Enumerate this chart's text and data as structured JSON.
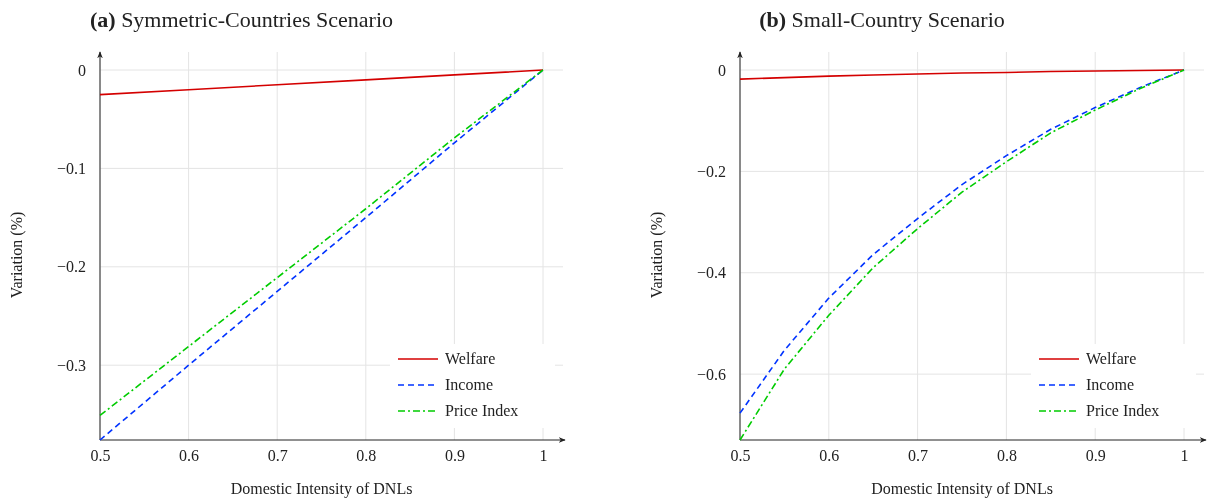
{
  "chart_data": [
    {
      "type": "line",
      "title": "(a) Symmetric-Countries Scenario",
      "xlabel": "Domestic Intensity of DNLs",
      "ylabel": "Variation (%)",
      "x": [
        0.5,
        0.6,
        0.7,
        0.8,
        0.9,
        1
      ],
      "series": [
        {
          "name": "Welfare",
          "color": "#d40000",
          "line_style": "solid",
          "values": [
            -0.025,
            -0.02,
            -0.015,
            -0.01,
            -0.005,
            0
          ]
        },
        {
          "name": "Income",
          "color": "#0033ff",
          "line_style": "dashed",
          "values": [
            -0.376,
            -0.3,
            -0.225,
            -0.15,
            -0.074,
            0
          ]
        },
        {
          "name": "Price Index",
          "color": "#00cc00",
          "line_style": "dashdot",
          "values": [
            -0.351,
            -0.281,
            -0.211,
            -0.141,
            -0.069,
            0
          ]
        }
      ],
      "xlim": [
        0.5,
        1.0
      ],
      "ylim": [
        -0.376,
        0
      ],
      "xticks": [
        0.5,
        0.6,
        0.7,
        0.8,
        0.9,
        1
      ],
      "yticks": [
        {
          "value": -0.3,
          "label": "−0.3"
        },
        {
          "value": -0.2,
          "label": "−0.2"
        },
        {
          "value": -0.1,
          "label": "−0.1"
        },
        0
      ],
      "grid": true,
      "legend": "bottom right",
      "marker": "none"
    },
    {
      "type": "line",
      "title": "(b) Small-Country Scenario",
      "xlabel": "Domestic Intensity of DNLs",
      "ylabel": "Variation (%)",
      "x": [
        0.5,
        0.55,
        0.6,
        0.65,
        0.7,
        0.75,
        0.8,
        0.85,
        0.9,
        0.95,
        1
      ],
      "series": [
        {
          "name": "Welfare",
          "color": "#d40000",
          "line_style": "solid",
          "values": [
            -0.018,
            -0.015,
            -0.012,
            -0.01,
            -0.008,
            -0.006,
            -0.005,
            -0.003,
            -0.002,
            -0.001,
            0
          ]
        },
        {
          "name": "Income",
          "color": "#0033ff",
          "line_style": "dashed",
          "values": [
            -0.677,
            -0.553,
            -0.45,
            -0.364,
            -0.293,
            -0.226,
            -0.169,
            -0.117,
            -0.074,
            -0.035,
            0
          ]
        },
        {
          "name": "Price Index",
          "color": "#00cc00",
          "line_style": "dashdot",
          "values": [
            -0.73,
            -0.59,
            -0.484,
            -0.39,
            -0.313,
            -0.241,
            -0.181,
            -0.124,
            -0.079,
            -0.037,
            0
          ]
        }
      ],
      "xlim": [
        0.5,
        1.0
      ],
      "ylim": [
        -0.73,
        0
      ],
      "xticks": [
        0.5,
        0.6,
        0.7,
        0.8,
        0.9,
        1
      ],
      "yticks": [
        {
          "value": -0.6,
          "label": "−0.6"
        },
        {
          "value": -0.4,
          "label": "−0.4"
        },
        {
          "value": -0.2,
          "label": "−0.2"
        },
        0
      ],
      "grid": true,
      "legend": "bottom right",
      "marker": "none"
    }
  ]
}
